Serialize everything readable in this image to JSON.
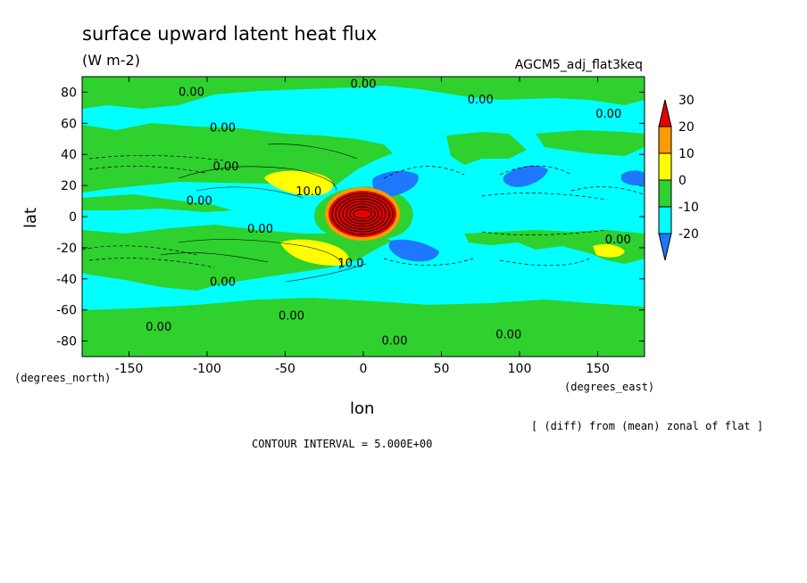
{
  "chart_data": {
    "type": "heatmap",
    "title": "surface upward latent heat flux",
    "units": "(W m-2)",
    "run_label": "AGCM5_adj_flat3keq",
    "xlabel": "lon",
    "ylabel": "lat",
    "x_unit_label": "(degrees_east)",
    "y_unit_label": "(degrees_north)",
    "xlim": [
      -180,
      180
    ],
    "ylim": [
      -90,
      90
    ],
    "x_ticks": [
      -150,
      -100,
      -50,
      0,
      50,
      100,
      150
    ],
    "x_tick_labels": [
      "-150",
      "-100",
      "-50",
      "0",
      "50",
      "100",
      "150"
    ],
    "y_ticks": [
      80,
      60,
      40,
      20,
      0,
      -20,
      -40,
      -60,
      -80
    ],
    "y_tick_labels": [
      "80",
      "60",
      "40",
      "20",
      "0",
      "-20",
      "-40",
      "-60",
      "-80"
    ],
    "note": "[ (diff) from (mean) zonal of flat ]",
    "contour_interval": "CONTOUR INTERVAL = 5.000E+00",
    "colorbar": {
      "levels": [
        -20,
        -10,
        0,
        10,
        20,
        30
      ],
      "level_labels": [
        "-20",
        "-10",
        "0",
        "10",
        "20",
        "30"
      ],
      "colors": [
        "#1e78ff",
        "#00ffff",
        "#2ed12e",
        "#ffff00",
        "#ff9900",
        "#e60000"
      ]
    },
    "contour_labels": [
      {
        "lon": -110,
        "lat": 80,
        "text": "0.00"
      },
      {
        "lon": 0,
        "lat": 85,
        "text": "0.00"
      },
      {
        "lon": 75,
        "lat": 75,
        "text": "0.00"
      },
      {
        "lon": 157,
        "lat": 66,
        "text": "0.00"
      },
      {
        "lon": -90,
        "lat": 57,
        "text": "0.00"
      },
      {
        "lon": -88,
        "lat": 32,
        "text": "0.00"
      },
      {
        "lon": -35,
        "lat": 16,
        "text": "10.0"
      },
      {
        "lon": -105,
        "lat": 10,
        "text": "0.00"
      },
      {
        "lon": -66,
        "lat": -8,
        "text": "0.00"
      },
      {
        "lon": 163,
        "lat": -15,
        "text": "0.00"
      },
      {
        "lon": -8,
        "lat": -30,
        "text": "10.0"
      },
      {
        "lon": -90,
        "lat": -42,
        "text": "0.00"
      },
      {
        "lon": -46,
        "lat": -64,
        "text": "0.00"
      },
      {
        "lon": -131,
        "lat": -71,
        "text": "0.00"
      },
      {
        "lon": 20,
        "lat": -80,
        "text": "0.00"
      },
      {
        "lon": 93,
        "lat": -76,
        "text": "0.00"
      }
    ]
  }
}
